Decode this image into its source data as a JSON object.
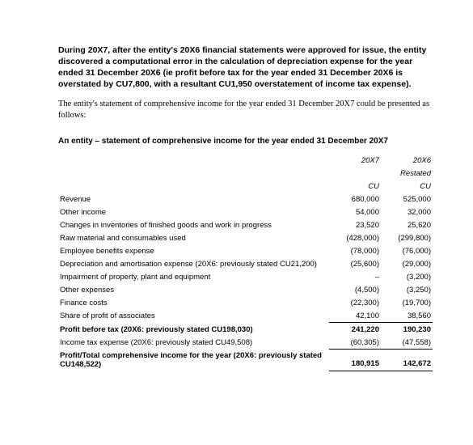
{
  "intro_bold": "During 20X7, after the entity's 20X6 financial statements were approved for issue, the entity discovered a computational error in the calculation of depreciation expense for the year ended 31 December 20X6 (ie profit before tax for the year ended 31 December 20X6 is overstated by CU7,800, with a resultant CU1,950 overstatement of income tax expense).",
  "intro_body": "The entity's statement of comprehensive income for the year ended 31 December 20X7 could be presented as follows:",
  "statement_title": "An entity – statement of comprehensive income for the year ended 31 December 20X7",
  "cols": {
    "y1": "20X7",
    "y2": "20X6",
    "restated": "Restated",
    "cu": "CU"
  },
  "rows": {
    "revenue": {
      "label": "Revenue",
      "y1": "680,000",
      "y2": "525,000"
    },
    "other_income": {
      "label": "Other income",
      "y1": "54,000",
      "y2": "32,000"
    },
    "inv_change": {
      "label": "Changes in inventories of finished goods and work in progress",
      "y1": "23,520",
      "y2": "25,620"
    },
    "raw_mat": {
      "label": "Raw material and consumables used",
      "y1": "(428,000)",
      "y2": "(299,800)"
    },
    "emp_ben": {
      "label": "Employee benefits expense",
      "y1": "(78,000)",
      "y2": "(76,000)"
    },
    "dep_amort": {
      "label": "Depreciation and amortisation expense (20X6: previously stated CU21,200)",
      "y1": "(25,600)",
      "y2": "(29,000)"
    },
    "impair": {
      "label": "Impairment of property, plant and equipment",
      "y1": "–",
      "y2": "(3,200)"
    },
    "other_exp": {
      "label": "Other expenses",
      "y1": "(4,500)",
      "y2": "(3,250)"
    },
    "fin_cost": {
      "label": "Finance costs",
      "y1": "(22,300)",
      "y2": "(19,700)"
    },
    "assoc": {
      "label": "Share of profit of associates",
      "y1": "42,100",
      "y2": "38,560"
    },
    "pbt": {
      "label": "Profit before tax (20X6: previously stated CU198,030)",
      "y1": "241,220",
      "y2": "190,230"
    },
    "tax": {
      "label": "Income tax expense (20X6: previously stated CU49,508)",
      "y1": "(60,305)",
      "y2": "(47,558)"
    },
    "total": {
      "label": "Profit/Total comprehensive income for the year (20X6: previously stated CU148,522)",
      "y1": "180,915",
      "y2": "142,672"
    }
  }
}
